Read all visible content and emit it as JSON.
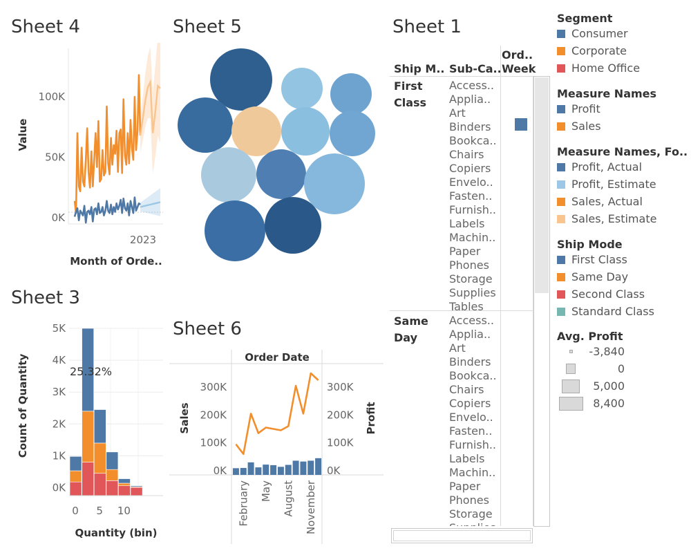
{
  "sheets": {
    "sheet4": "Sheet 4",
    "sheet5": "Sheet 5",
    "sheet1": "Sheet 1",
    "sheet3": "Sheet 3",
    "sheet6": "Sheet 6"
  },
  "colors": {
    "consumer": "#4e79a7",
    "corporate": "#f28e2b",
    "home_office": "#e15759",
    "standard_class": "#76b7b2",
    "profit_estimate": "#9dc7e6",
    "sales_estimate": "#f9c48e",
    "avg_profit": "#d9d9d9"
  },
  "chart_data": [
    {
      "id": "sheet4",
      "type": "line",
      "xlabel": "Month of Orde..",
      "ylabel": "Value",
      "y_ticks": [
        "100K",
        "50K",
        "0K"
      ],
      "x_ticks": [
        "2023"
      ],
      "ylim": [
        -5000,
        140000
      ],
      "series": [
        {
          "name": "Sales, Actual",
          "color": "#f28e2b",
          "values": [
            14000,
            4000,
            70000,
            26000,
            22000,
            58000,
            30000,
            26000,
            48000,
            74000,
            38000,
            25000,
            55000,
            26000,
            48000,
            70000,
            42000,
            80000,
            30000,
            32000,
            56000,
            35000,
            38000,
            92000,
            45000,
            36000,
            66000,
            44000,
            60000,
            53000,
            72000,
            38000,
            70000,
            73000,
            37000,
            98000,
            52000,
            44000,
            70000,
            45000,
            81000,
            58000,
            48000,
            100000,
            56000,
            72000,
            118000,
            68000
          ]
        },
        {
          "name": "Sales, Estimate",
          "color": "#f9c48e",
          "values": [
            68000,
            82000,
            97000,
            108000,
            112000,
            70000,
            88000,
            109000,
            107000
          ]
        },
        {
          "name": "Profit, Actual",
          "color": "#4e79a7",
          "values": [
            1000,
            5000,
            8000,
            -2000,
            6000,
            4000,
            2000,
            10000,
            -4000,
            5000,
            6000,
            3000,
            9000,
            -3000,
            7000,
            8000,
            3000,
            12000,
            4000,
            5000,
            9000,
            2000,
            6000,
            14000,
            6000,
            4000,
            11000,
            3000,
            9000,
            5000,
            12000,
            7000,
            10000,
            15000,
            4000,
            16000,
            8000,
            6000,
            12000,
            2000,
            14000,
            9000,
            4000,
            17000,
            6000,
            9000,
            12000,
            11000
          ]
        },
        {
          "name": "Profit, Estimate",
          "color": "#9dc7e6",
          "values": [
            9000,
            9500,
            10000,
            10500,
            11000,
            11500,
            12000,
            12500,
            13000
          ]
        }
      ]
    },
    {
      "id": "sheet5",
      "type": "bubble",
      "series": [
        {
          "name": "",
          "values": [
            1,
            1,
            1,
            1,
            1,
            1,
            1,
            1,
            1,
            1,
            1,
            1
          ]
        }
      ]
    },
    {
      "id": "sheet1",
      "type": "table",
      "columns": [
        "Ship M..",
        "Sub-Ca..",
        "Ord.. Week"
      ],
      "groups": [
        {
          "label": "First Class",
          "rows": [
            "Access..",
            "Applia..",
            "Art",
            "Binders",
            "Bookca..",
            "Chairs",
            "Copiers",
            "Envelo..",
            "Fasten..",
            "Furnish..",
            "Labels",
            "Machin..",
            "Paper",
            "Phones",
            "Storage",
            "Supplies",
            "Tables"
          ]
        },
        {
          "label": "Same Day",
          "rows": [
            "Access..",
            "Applia..",
            "Art",
            "Binders",
            "Bookca..",
            "Chairs",
            "Copiers",
            "Envelo..",
            "Fasten..",
            "Furnish..",
            "Labels",
            "Machin..",
            "Paper",
            "Phones",
            "Storage",
            "Supplies"
          ]
        }
      ]
    },
    {
      "id": "sheet3",
      "type": "bar",
      "stacked": true,
      "xlabel": "Quantity (bin)",
      "ylabel": "Count of Quantity",
      "x_ticks": [
        "0",
        "5",
        "10"
      ],
      "y_ticks": [
        "5K",
        "4K",
        "3K",
        "2K",
        "1K",
        "0K"
      ],
      "ylim": [
        -250,
        5000
      ],
      "annotation": "25.32%",
      "categories": [
        "0",
        "2.5",
        "5",
        "7.5",
        "10",
        "12.5"
      ],
      "series": [
        {
          "name": "Home Office",
          "values": [
            180,
            800,
            450,
            220,
            60,
            10
          ]
        },
        {
          "name": "Corporate",
          "values": [
            350,
            1600,
            950,
            350,
            80,
            20
          ]
        },
        {
          "name": "Consumer",
          "values": [
            450,
            2600,
            1050,
            550,
            140,
            30
          ]
        }
      ]
    },
    {
      "id": "sheet6",
      "type": "combo",
      "column_header": "Order Date",
      "ylabel": "Sales",
      "y2label": "Profit",
      "y_ticks": [
        "300K",
        "200K",
        "100K",
        "0K"
      ],
      "y2_ticks": [
        "300K",
        "200K",
        "100K",
        "0K"
      ],
      "ylim": [
        -15000,
        340000
      ],
      "x_ticks": [
        "February",
        "May",
        "August",
        "November"
      ],
      "categories": [
        "January",
        "February",
        "March",
        "April",
        "May",
        "June",
        "July",
        "August",
        "September",
        "October",
        "November",
        "December"
      ],
      "series": [
        {
          "name": "Sales",
          "type": "line",
          "color": "#f28e2b",
          "values": [
            95000,
            60000,
            205000,
            135000,
            155000,
            150000,
            145000,
            160000,
            305000,
            205000,
            350000,
            325000
          ]
        },
        {
          "name": "Profit",
          "type": "bar",
          "color": "#4e79a7",
          "values": [
            9000,
            10000,
            30000,
            12000,
            22000,
            20000,
            14000,
            21000,
            36000,
            33000,
            36000,
            45000
          ]
        }
      ]
    }
  ],
  "legends": [
    {
      "title": "Segment",
      "items": [
        {
          "label": "Consumer",
          "color": "#4e79a7"
        },
        {
          "label": "Corporate",
          "color": "#f28e2b"
        },
        {
          "label": "Home Office",
          "color": "#e15759"
        }
      ]
    },
    {
      "title": "Measure Names",
      "items": [
        {
          "label": "Profit",
          "color": "#4e79a7"
        },
        {
          "label": "Sales",
          "color": "#f28e2b"
        }
      ]
    },
    {
      "title": "Measure Names, Fo..",
      "items": [
        {
          "label": "Profit, Actual",
          "color": "#4e79a7"
        },
        {
          "label": "Profit, Estimate",
          "color": "#9dc7e6"
        },
        {
          "label": "Sales, Actual",
          "color": "#f28e2b"
        },
        {
          "label": "Sales, Estimate",
          "color": "#f9c48e"
        }
      ]
    },
    {
      "title": "Ship Mode",
      "items": [
        {
          "label": "First Class",
          "color": "#4e79a7"
        },
        {
          "label": "Same Day",
          "color": "#f28e2b"
        },
        {
          "label": "Second Class",
          "color": "#e15759"
        },
        {
          "label": "Standard Class",
          "color": "#76b7b2"
        }
      ]
    }
  ],
  "avg_profit": {
    "title": "Avg. Profit",
    "items": [
      "-3,840",
      "0",
      "5,000",
      "8,400"
    ],
    "values": [
      -3840,
      0,
      5000,
      8400
    ]
  }
}
